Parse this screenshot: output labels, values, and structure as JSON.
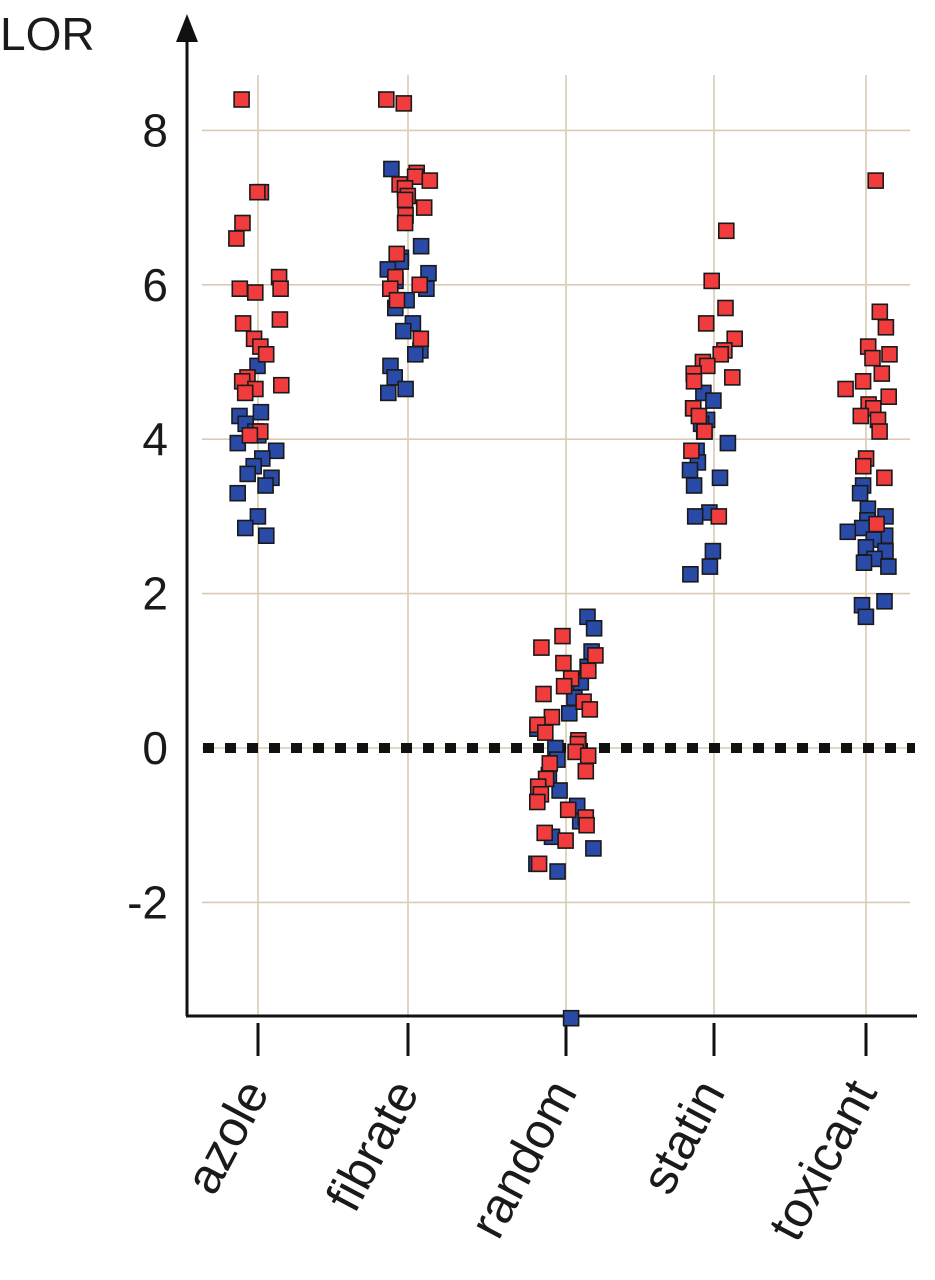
{
  "chart_data": {
    "type": "scatter",
    "ylabel": "LOR",
    "ylim": [
      -3.5,
      9
    ],
    "yticks": [
      -2,
      0,
      2,
      4,
      6,
      8
    ],
    "grid": true,
    "reference_line": 0,
    "categories": [
      "azole",
      "fibrate",
      "random",
      "statin",
      "toxicant"
    ],
    "colors": {
      "red_series": "#f03c3c",
      "blue_series": "#2a4aa8"
    },
    "points": {
      "azole": {
        "red": [
          8.4,
          7.2,
          7.2,
          6.8,
          6.6,
          6.1,
          5.95,
          5.95,
          5.9,
          5.55,
          5.5,
          5.3,
          5.2,
          5.1,
          4.8,
          4.75,
          4.7,
          4.65,
          4.6,
          4.1,
          4.05
        ],
        "blue": [
          4.95,
          4.35,
          4.3,
          4.2,
          4.1,
          4.05,
          3.95,
          3.85,
          3.75,
          3.65,
          3.55,
          3.5,
          3.4,
          3.3,
          3.0,
          2.85,
          2.75
        ]
      },
      "fibrate": {
        "red": [
          8.4,
          8.35,
          7.45,
          7.4,
          7.35,
          7.3,
          7.25,
          7.15,
          7.1,
          7.0,
          6.9,
          6.8,
          6.4,
          6.1,
          6.0,
          5.95,
          5.8,
          5.3
        ],
        "blue": [
          7.5,
          6.5,
          6.35,
          6.3,
          6.2,
          6.15,
          6.05,
          5.95,
          5.8,
          5.7,
          5.5,
          5.4,
          5.15,
          5.1,
          4.95,
          4.8,
          4.65,
          4.6
        ]
      },
      "random": {
        "red": [
          1.45,
          1.3,
          1.2,
          1.1,
          1.0,
          0.9,
          0.8,
          0.7,
          0.6,
          0.5,
          0.4,
          0.3,
          0.2,
          0.1,
          0.05,
          -0.05,
          -0.1,
          -0.2,
          -0.3,
          -0.4,
          -0.5,
          -0.6,
          -0.7,
          -0.8,
          -0.9,
          -1.0,
          -1.1,
          -1.2,
          -1.5
        ],
        "blue": [
          1.7,
          1.55,
          1.25,
          1.05,
          0.85,
          0.65,
          0.45,
          0.25,
          0.0,
          -0.15,
          -0.35,
          -0.55,
          -0.75,
          -0.95,
          -1.15,
          -1.3,
          -1.5,
          -1.6,
          -3.5
        ]
      },
      "statin": {
        "red": [
          6.7,
          6.05,
          5.7,
          5.5,
          5.3,
          5.15,
          5.1,
          5.0,
          4.95,
          4.85,
          4.8,
          4.75,
          4.4,
          4.3,
          4.1,
          3.85,
          3.0
        ],
        "blue": [
          4.6,
          4.5,
          4.4,
          4.25,
          4.2,
          4.1,
          3.95,
          3.85,
          3.7,
          3.6,
          3.5,
          3.4,
          3.05,
          3.0,
          2.55,
          2.35,
          2.25
        ]
      },
      "toxicant": {
        "red": [
          7.35,
          5.65,
          5.45,
          5.2,
          5.1,
          5.05,
          4.85,
          4.75,
          4.65,
          4.55,
          4.45,
          4.4,
          4.3,
          4.25,
          4.1,
          3.75,
          3.65,
          3.5,
          2.9
        ],
        "blue": [
          3.4,
          3.3,
          3.1,
          3.0,
          2.95,
          2.85,
          2.8,
          2.75,
          2.7,
          2.6,
          2.55,
          2.45,
          2.4,
          2.35,
          1.9,
          1.85,
          1.7
        ]
      }
    }
  }
}
